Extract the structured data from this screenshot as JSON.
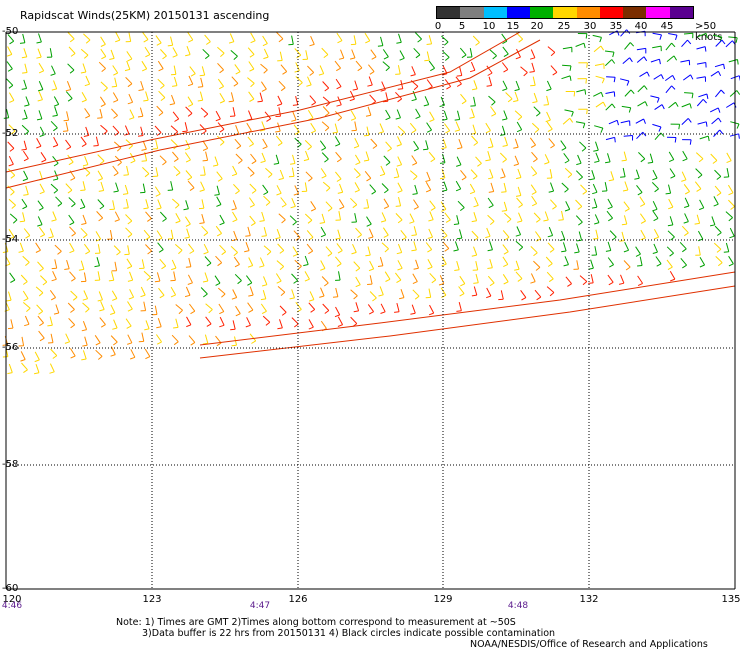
{
  "header": {
    "title": "Rapidscat Winds(25KM) 20150131 ascending"
  },
  "legend": {
    "labels": [
      "0",
      "5",
      "10",
      "15",
      "20",
      "25",
      "30",
      "35",
      "40",
      "45",
      ">50 knots"
    ],
    "colors": [
      "#333333",
      "#7f7f7f",
      "#00bfff",
      "#0000ff",
      "#00b000",
      "#ffd700",
      "#ff8c00",
      "#ff0000",
      "#7b2d00",
      "#ff00ff",
      "#5a0090"
    ]
  },
  "axes": {
    "lat_labels": [
      "-50",
      "-52",
      "-54",
      "-56",
      "-58",
      "-60"
    ],
    "lon_labels": [
      "120",
      "123",
      "126",
      "129",
      "132",
      "135"
    ]
  },
  "times": [
    "4:46",
    "4:47",
    "4:48"
  ],
  "notes": {
    "line1": "Note: 1) Times are GMT 2)Times along bottom correspond to measurement at ~50S",
    "line2": "3)Data buffer is 22 hrs from 20150131 4) Black circles indicate possible contamination",
    "credit": "NOAA/NESDIS/Office of Research and Applications"
  }
}
